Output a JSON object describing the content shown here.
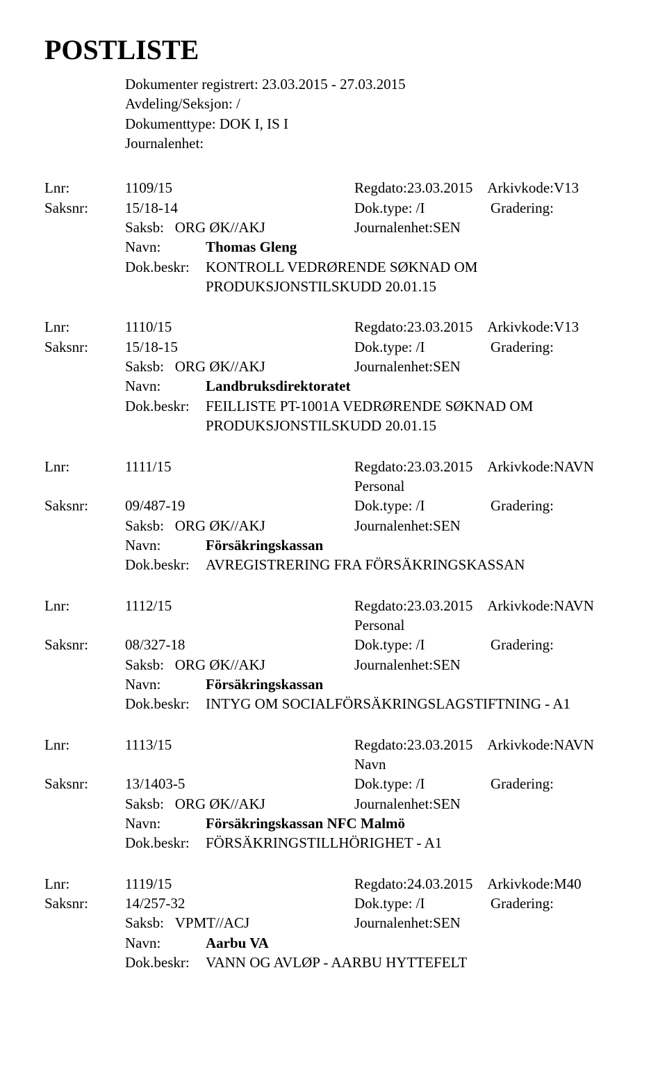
{
  "title": "POSTLISTE",
  "header": {
    "line1": "Dokumenter registrert: 23.03.2015 - 27.03.2015",
    "line2": "Avdeling/Seksjon: /",
    "line3": "Dokumenttype: DOK I, IS I",
    "line4": "Journalenhet:"
  },
  "labels": {
    "lnr": "Lnr:",
    "saksnr": "Saksnr:",
    "saksb": "Saksb:",
    "navn": "Navn:",
    "dokbeskr": "Dok.beskr:",
    "regdato": "Regdato:",
    "doktype": "Dok.type:",
    "arkivkode": "Arkivkode:",
    "gradering": "Gradering:",
    "journalenhet": "Journalenhet:"
  },
  "entries": [
    {
      "lnr": "1109/15",
      "regdato": "23.03.2015",
      "arkivkode": "V13",
      "saksnr": "15/18-14",
      "doktype": "/I",
      "gradering": "",
      "saksb": "ORG ØK//AKJ",
      "journalenhet": "SEN",
      "navn": "Thomas Gleng",
      "beskr_lines": [
        "KONTROLL VEDRØRENDE SØKNAD OM",
        "PRODUKSJONSTILSKUDD 20.01.15"
      ]
    },
    {
      "lnr": "1110/15",
      "regdato": "23.03.2015",
      "arkivkode": "V13",
      "saksnr": "15/18-15",
      "doktype": "/I",
      "gradering": "",
      "saksb": "ORG ØK//AKJ",
      "journalenhet": "SEN",
      "navn": "Landbruksdirektoratet",
      "beskr_lines": [
        "FEILLISTE PT-1001A VEDRØRENDE SØKNAD OM",
        "PRODUKSJONSTILSKUDD 20.01.15"
      ]
    },
    {
      "lnr": "1111/15",
      "regdato": "23.03.2015",
      "arkivkode": "NAVN Personal",
      "saksnr": "09/487-19",
      "doktype": "/I",
      "gradering": "",
      "saksb": "ORG ØK//AKJ",
      "journalenhet": "SEN",
      "navn": "Försäkringskassan",
      "beskr_lines": [
        "AVREGISTRERING FRA FÖRSÄKRINGSKASSAN"
      ]
    },
    {
      "lnr": "1112/15",
      "regdato": "23.03.2015",
      "arkivkode": "NAVN Personal",
      "saksnr": "08/327-18",
      "doktype": "/I",
      "gradering": "",
      "saksb": "ORG ØK//AKJ",
      "journalenhet": "SEN",
      "navn": "Försäkringskassan",
      "beskr_lines": [
        "INTYG OM SOCIALFÖRSÄKRINGSLAGSTIFTNING - A1"
      ]
    },
    {
      "lnr": "1113/15",
      "regdato": "23.03.2015",
      "arkivkode": "NAVN Navn",
      "saksnr": "13/1403-5",
      "doktype": "/I",
      "gradering": "",
      "saksb": "ORG ØK//AKJ",
      "journalenhet": "SEN",
      "navn": "Försäkringskassan NFC Malmö",
      "beskr_lines": [
        "FÖRSÄKRINGSTILLHÖRIGHET - A1"
      ]
    },
    {
      "lnr": "1119/15",
      "regdato": "24.03.2015",
      "arkivkode": "M40",
      "saksnr": "14/257-32",
      "doktype": "/I",
      "gradering": "",
      "saksb": "VPMT//ACJ",
      "journalenhet": "SEN",
      "navn": "Aarbu VA",
      "beskr_lines": [
        "VANN OG AVLØP - AARBU HYTTEFELT"
      ]
    }
  ]
}
